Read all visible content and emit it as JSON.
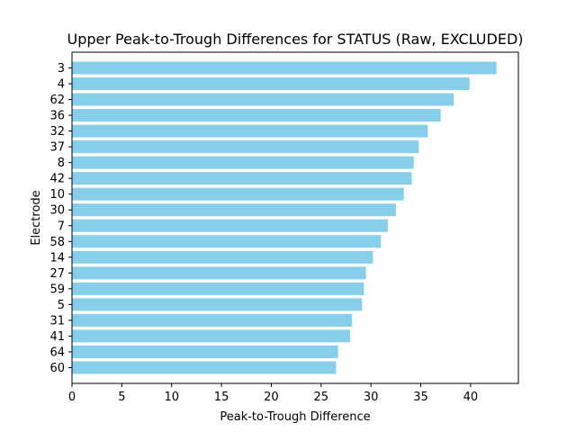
{
  "chart_data": {
    "type": "bar",
    "orientation": "horizontal",
    "title": "Upper Peak-to-Trough Differences for STATUS (Raw, EXCLUDED)",
    "xlabel": "Peak-to-Trough Difference",
    "ylabel": "Electrode",
    "categories": [
      "3",
      "4",
      "62",
      "36",
      "32",
      "37",
      "8",
      "42",
      "10",
      "30",
      "7",
      "58",
      "14",
      "27",
      "59",
      "5",
      "31",
      "41",
      "64",
      "60"
    ],
    "values": [
      42.6,
      39.9,
      38.3,
      37.0,
      35.7,
      34.8,
      34.3,
      34.1,
      33.3,
      32.5,
      31.7,
      31.0,
      30.2,
      29.5,
      29.3,
      29.1,
      28.1,
      27.9,
      26.7,
      26.5
    ],
    "xlim": [
      0,
      44.8
    ],
    "xticks": [
      0,
      5,
      10,
      15,
      20,
      25,
      30,
      35,
      40
    ],
    "xtick_labels": [
      "0",
      "5",
      "10",
      "15",
      "20",
      "25",
      "30",
      "35",
      "40"
    ],
    "bar_color": "#87ceeb",
    "grid": false,
    "legend": "none"
  }
}
